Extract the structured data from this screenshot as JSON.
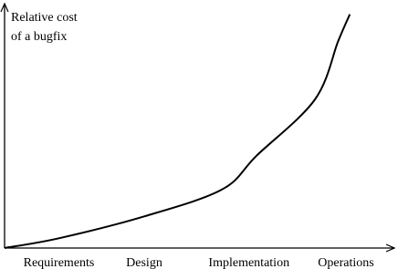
{
  "chart_data": {
    "type": "line",
    "y_label": [
      "Relative cost",
      "of a bugfix"
    ],
    "x": [
      0,
      14,
      36,
      56,
      65,
      80,
      86,
      89
    ],
    "values": [
      0,
      4,
      13,
      24,
      38,
      61,
      85,
      96
    ],
    "color": "#000000",
    "xlim": [
      0,
      100
    ],
    "ylim": [
      0,
      100
    ],
    "xticks": [
      {
        "value": 14,
        "label": "Requirements"
      },
      {
        "value": 36,
        "label": "Design"
      },
      {
        "value": 63,
        "label": "Implementation"
      },
      {
        "value": 88,
        "label": "Operations"
      }
    ],
    "grid": false
  }
}
